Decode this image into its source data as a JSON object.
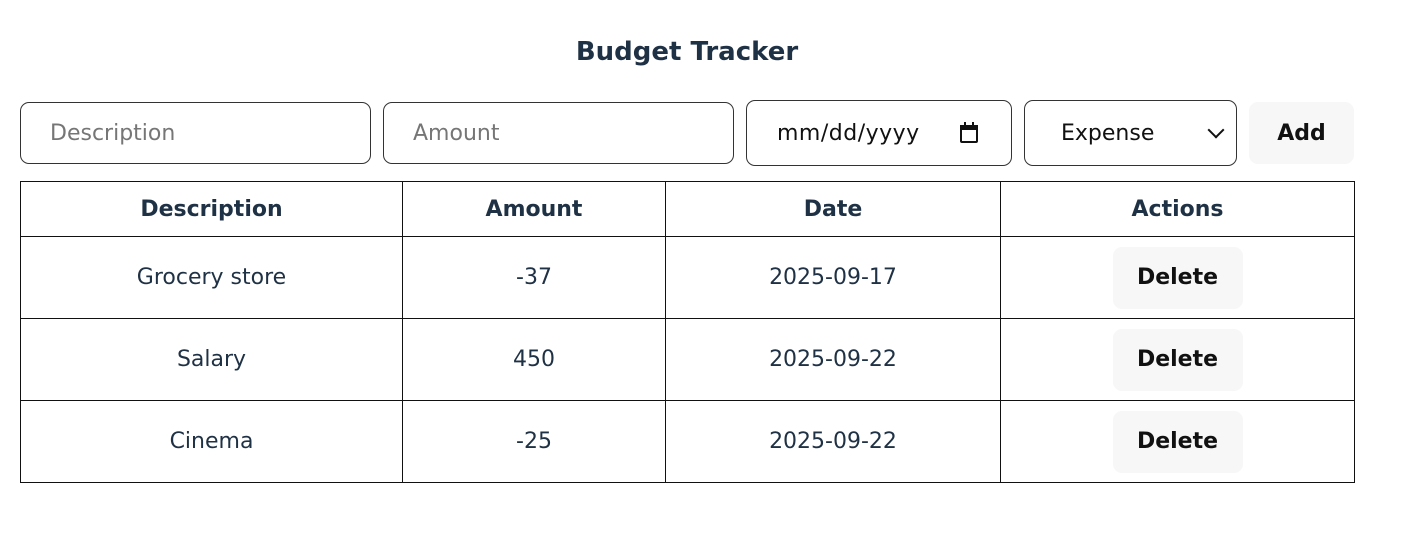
{
  "page": {
    "title": "Budget Tracker"
  },
  "form": {
    "description_placeholder": "Description",
    "description_value": "",
    "amount_placeholder": "Amount",
    "amount_value": "",
    "date_display": "mm/dd/yyyy",
    "type_selected": "Expense",
    "add_label": "Add"
  },
  "table": {
    "headers": [
      "Description",
      "Amount",
      "Date",
      "Actions"
    ],
    "rows": [
      {
        "description": "Grocery store",
        "amount": "-37",
        "date": "2025-09-17",
        "action_label": "Delete"
      },
      {
        "description": "Salary",
        "amount": "450",
        "date": "2025-09-22",
        "action_label": "Delete"
      },
      {
        "description": "Cinema",
        "amount": "-25",
        "date": "2025-09-22",
        "action_label": "Delete"
      }
    ]
  },
  "icons": {
    "date_picker": "calendar-icon",
    "type_dropdown": "chevron-down-icon"
  },
  "colors": {
    "text": "#1f3144",
    "button_bg": "#f7f7f7",
    "border": "#111111"
  }
}
